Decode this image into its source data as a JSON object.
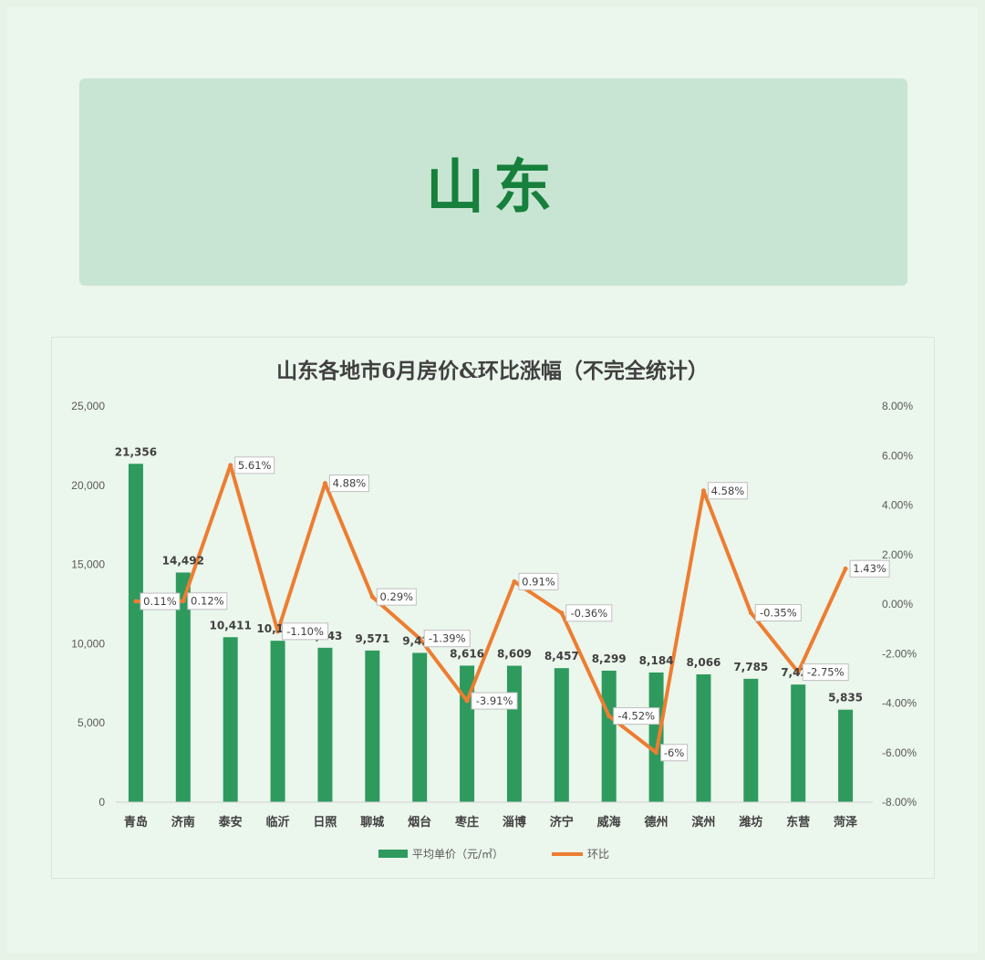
{
  "banner": {
    "title": "山东"
  },
  "chart_data": {
    "type": "bar+line",
    "title": "山东各地市6月房价&环比涨幅（不完全统计）",
    "categories": [
      "青岛",
      "济南",
      "泰安",
      "临沂",
      "日照",
      "聊城",
      "烟台",
      "枣庄",
      "淄博",
      "济宁",
      "威海",
      "德州",
      "滨州",
      "潍坊",
      "东营",
      "菏泽"
    ],
    "series": [
      {
        "name": "平均单价（元/㎡）",
        "type": "bar",
        "axis": "left",
        "color": "#2e9a5e",
        "values": [
          21356,
          14492,
          10411,
          10185,
          9743,
          9571,
          9421,
          8616,
          8609,
          8457,
          8299,
          8184,
          8066,
          7785,
          7421,
          5835
        ]
      },
      {
        "name": "环比",
        "type": "line",
        "axis": "right",
        "color": "#ed7d31",
        "values": [
          0.11,
          0.12,
          5.61,
          -1.1,
          4.88,
          0.29,
          -1.39,
          -3.91,
          0.91,
          -0.36,
          -4.52,
          -6,
          4.58,
          -0.35,
          -2.75,
          1.43
        ]
      }
    ],
    "bar_labels": [
      "21,356",
      "14,492",
      "10,411",
      "10,185",
      "9,743",
      "9,571",
      "9,421",
      "8,616",
      "8,609",
      "8,457",
      "8,299",
      "8,184",
      "8,066",
      "7,785",
      "7,421",
      "5,835"
    ],
    "line_labels": [
      "0.11%",
      "0.12%",
      "5.61%",
      "-1.10%",
      "4.88%",
      "0.29%",
      "-1.39%",
      "-3.91%",
      "0.91%",
      "-0.36%",
      "-4.52%",
      "-6%",
      "4.58%",
      "-0.35%",
      "-2.75%",
      "1.43%"
    ],
    "y_left": {
      "min": 0,
      "max": 25000,
      "ticks": [
        "0",
        "5,000",
        "10,000",
        "15,000",
        "20,000",
        "25,000"
      ]
    },
    "y_right": {
      "min": -8,
      "max": 8,
      "ticks": [
        "-8.00%",
        "-6.00%",
        "-4.00%",
        "-2.00%",
        "0.00%",
        "2.00%",
        "4.00%",
        "6.00%",
        "8.00%"
      ]
    },
    "legend": {
      "position": "bottom",
      "items": [
        "平均单价（元/㎡）",
        "环比"
      ]
    },
    "grid": false
  }
}
